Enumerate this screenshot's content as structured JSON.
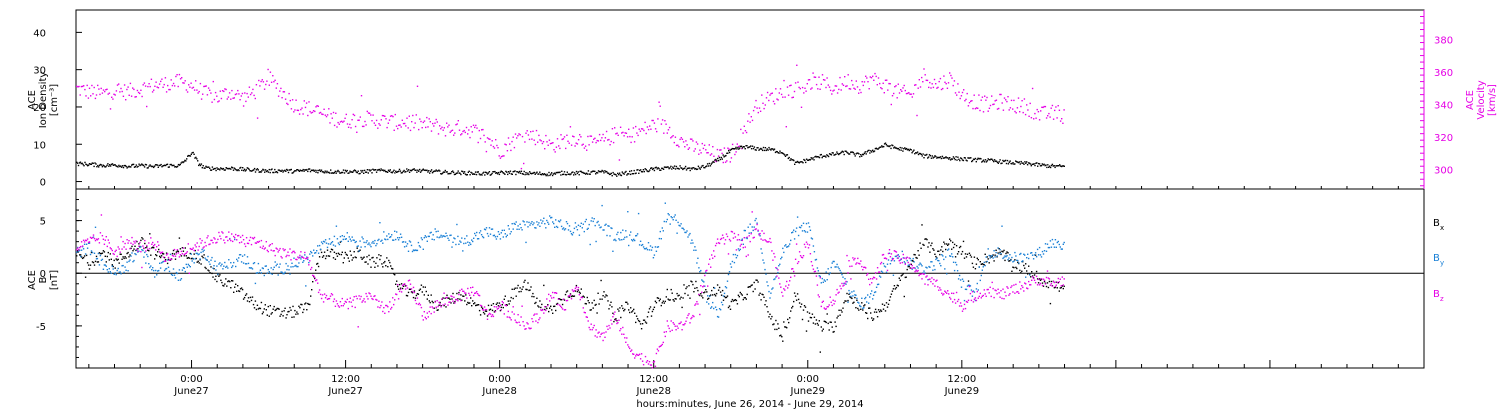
{
  "chart_data": [
    {
      "type": "scatter",
      "panel": "top",
      "title": "",
      "xlabel": "hours:minutes, June 26, 2014 - June 29, 2014",
      "x_unit": "hours since 2014-06-26 00:00 UT",
      "xlim": [
        15,
        120
      ],
      "x_ticks": [
        {
          "label": "0:00",
          "sub": "June27"
        },
        {
          "label": "12:00",
          "sub": "June27"
        },
        {
          "label": "0:00",
          "sub": "June28"
        },
        {
          "label": "12:00",
          "sub": "June28"
        },
        {
          "label": "0:00",
          "sub": "June29"
        },
        {
          "label": "12:00",
          "sub": "June29"
        }
      ],
      "x_tick_values": [
        24,
        36,
        48,
        60,
        72,
        84
      ],
      "left_axis": {
        "label_lines": [
          "ACE",
          "Ion Density",
          "[cm⁻³]"
        ],
        "ylim": [
          -2,
          46
        ],
        "ticks": [
          0,
          10,
          20,
          30,
          40
        ],
        "color": "#000000"
      },
      "right_axis": {
        "label_lines": [
          "ACE",
          "Velocity",
          "[km/s]"
        ],
        "ylim": [
          288,
          398
        ],
        "ticks": [
          300,
          320,
          340,
          360,
          380
        ],
        "color": "#e600e6"
      },
      "series": [
        {
          "key": "density",
          "axis": "left",
          "color": "#000000",
          "x": [
            15,
            16,
            17,
            18,
            19,
            20,
            21,
            22,
            23,
            23.5,
            24,
            24.5,
            25,
            26,
            27,
            28,
            29,
            30,
            31,
            32,
            33,
            34,
            35,
            36,
            37,
            38,
            39,
            40,
            41,
            42,
            43,
            44,
            45,
            46,
            47,
            48,
            49,
            50,
            51,
            52,
            53,
            54,
            55,
            56,
            57,
            58,
            59,
            60,
            61,
            62,
            63,
            64,
            65,
            66,
            67,
            68,
            69,
            70,
            71,
            72,
            73,
            74,
            75,
            76,
            77,
            78,
            79,
            80,
            81,
            82,
            83,
            84,
            85,
            86,
            87,
            88,
            89,
            90,
            91,
            92
          ],
          "y": [
            5,
            4.8,
            4.5,
            4.6,
            4.3,
            4.4,
            4.2,
            4.5,
            4.4,
            6,
            8,
            5,
            3.8,
            3.6,
            3.7,
            3.4,
            3.2,
            3.0,
            3.1,
            2.9,
            3.2,
            3.0,
            2.8,
            2.9,
            2.7,
            3.0,
            3.1,
            2.9,
            3.2,
            3.0,
            2.8,
            2.6,
            2.5,
            2.4,
            2.3,
            2.5,
            2.6,
            2.4,
            2.3,
            2.2,
            2.5,
            2.4,
            2.6,
            2.7,
            2.0,
            2.5,
            3.0,
            3.5,
            3.8,
            3.9,
            3.5,
            4.2,
            6.0,
            8.5,
            9.5,
            9.0,
            8.8,
            8.0,
            5.0,
            6.0,
            7.0,
            7.5,
            8.0,
            7.2,
            8.5,
            10.0,
            9.0,
            8.5,
            7.0,
            6.8,
            6.5,
            6.2,
            6.0,
            5.8,
            5.5,
            5.2,
            5.0,
            4.6,
            4.3,
            4.2
          ],
          "y_repeat_note": ""
        },
        {
          "key": "velocity",
          "axis": "right",
          "color": "#e600e6",
          "x": [
            15,
            16,
            17,
            18,
            19,
            20,
            21,
            22,
            23,
            24,
            25,
            26,
            27,
            28,
            29,
            30,
            31,
            32,
            33,
            34,
            35,
            36,
            37,
            38,
            39,
            40,
            41,
            42,
            43,
            44,
            45,
            46,
            47,
            48,
            49,
            50,
            51,
            52,
            53,
            54,
            55,
            56,
            57,
            58,
            59,
            60,
            61,
            62,
            63,
            64,
            65,
            66,
            67,
            68,
            69,
            70,
            71,
            72,
            73,
            74,
            75,
            76,
            77,
            78,
            79,
            80,
            81,
            82,
            83,
            84,
            85,
            86,
            87,
            88,
            89,
            90,
            91,
            92
          ],
          "y": [
            350,
            348,
            347,
            349,
            348,
            350,
            352,
            353,
            354,
            352,
            347,
            345,
            348,
            344,
            349,
            356,
            348,
            340,
            338,
            335,
            332,
            330,
            332,
            331,
            330,
            329,
            330,
            328,
            327,
            325,
            326,
            324,
            320,
            312,
            318,
            322,
            320,
            315,
            318,
            320,
            316,
            318,
            322,
            321,
            324,
            328,
            326,
            318,
            314,
            312,
            308,
            310,
            325,
            340,
            344,
            348,
            350,
            352,
            354,
            350,
            355,
            352,
            356,
            352,
            348,
            346,
            358,
            352,
            356,
            346,
            342,
            340,
            342,
            340,
            339,
            334,
            335,
            333
          ],
          "y_repeat_note": ""
        }
      ]
    },
    {
      "type": "scatter",
      "panel": "bottom",
      "title": "",
      "xlabel": "hours:minutes, June 26, 2014 - June 29, 2014",
      "xlim": [
        15,
        120
      ],
      "left_axis": {
        "label_lines": [
          "ACE",
          "B",
          "[nT]"
        ],
        "ylim": [
          -9,
          8
        ],
        "ticks": [
          -5,
          0,
          5
        ],
        "color": "#000000"
      },
      "legend": [
        {
          "text": "B",
          "sub": "x",
          "color": "#000000"
        },
        {
          "text": "B",
          "sub": "y",
          "color": "#1a80d6"
        },
        {
          "text": "B",
          "sub": "z",
          "color": "#e600e6"
        }
      ],
      "series": [
        {
          "key": "bx",
          "color": "#000000",
          "x": [
            15,
            16,
            17,
            18,
            19,
            20,
            21,
            22,
            23,
            24,
            25,
            26,
            27,
            28,
            29,
            30,
            31,
            32,
            33,
            34,
            35,
            36,
            37,
            38,
            39,
            40,
            41,
            42,
            43,
            44,
            45,
            46,
            47,
            48,
            49,
            50,
            51,
            52,
            53,
            54,
            55,
            56,
            57,
            58,
            59,
            60,
            61,
            62,
            63,
            64,
            65,
            66,
            67,
            68,
            69,
            70,
            71,
            72,
            73,
            74,
            75,
            76,
            77,
            78,
            79,
            80,
            81,
            82,
            83,
            84,
            85,
            86,
            87,
            88,
            89,
            90,
            91,
            92
          ],
          "y": [
            2,
            1,
            2,
            1,
            2,
            3,
            2,
            1.5,
            2,
            2,
            1,
            -0.5,
            -1,
            -2,
            -3,
            -3.5,
            -3.8,
            -3.6,
            -3.2,
            2,
            1.8,
            1.5,
            2,
            1,
            1.5,
            -1,
            -2,
            -1.5,
            -3,
            -2.5,
            -2,
            -3,
            -3.5,
            -3,
            -2,
            -1,
            -3,
            -3.5,
            -2,
            -1.5,
            -3,
            -2,
            -4,
            -3,
            -5,
            -3,
            -2,
            -2.5,
            -1,
            -2,
            -1.5,
            -3,
            -2,
            -1,
            -4,
            -6,
            -2,
            -4,
            -5,
            -5,
            -2,
            -3,
            -4,
            -3,
            -1,
            1,
            3,
            2,
            3,
            2,
            1,
            1.5,
            2,
            1,
            0.5,
            -0.5,
            -1,
            -1.5
          ]
        },
        {
          "key": "by",
          "color": "#1a80d6",
          "x": [
            15,
            16,
            17,
            18,
            19,
            20,
            21,
            22,
            23,
            24,
            25,
            26,
            27,
            28,
            29,
            30,
            31,
            32,
            33,
            34,
            35,
            36,
            37,
            38,
            39,
            40,
            41,
            42,
            43,
            44,
            45,
            46,
            47,
            48,
            49,
            50,
            51,
            52,
            53,
            54,
            55,
            56,
            57,
            58,
            59,
            60,
            61,
            62,
            63,
            64,
            65,
            66,
            67,
            68,
            69,
            70,
            71,
            72,
            73,
            74,
            75,
            76,
            77,
            78,
            79,
            80,
            81,
            82,
            83,
            84,
            85,
            86,
            87,
            88,
            89,
            90,
            91,
            92
          ],
          "y": [
            2,
            2.5,
            1,
            0,
            1,
            2.5,
            0,
            1,
            -0.5,
            1.5,
            2,
            0.5,
            1,
            1.5,
            0.5,
            0.2,
            0.5,
            1,
            1.5,
            2.5,
            3,
            3.5,
            3,
            3,
            3.5,
            3.8,
            2.5,
            3,
            3.8,
            3.5,
            3,
            3.5,
            4,
            3.5,
            4.5,
            4.5,
            4.8,
            5,
            4.5,
            4,
            5,
            4.5,
            3.5,
            4,
            3,
            2,
            5.5,
            5,
            3,
            -2,
            -4,
            1,
            3.5,
            5,
            -2,
            2,
            4,
            4.5,
            -1,
            1,
            -1,
            -3,
            -2,
            1,
            2,
            1,
            0.5,
            1,
            2,
            -1,
            -2,
            2,
            2,
            1.5,
            1.5,
            2,
            3,
            2.5
          ]
        },
        {
          "key": "bz",
          "color": "#e600e6",
          "x": [
            15,
            16,
            17,
            18,
            19,
            20,
            21,
            22,
            23,
            24,
            25,
            26,
            27,
            28,
            29,
            30,
            31,
            32,
            33,
            34,
            35,
            36,
            37,
            38,
            39,
            40,
            41,
            42,
            43,
            44,
            45,
            46,
            47,
            48,
            49,
            50,
            51,
            52,
            53,
            54,
            55,
            56,
            57,
            58,
            59,
            60,
            61,
            62,
            63,
            64,
            65,
            66,
            67,
            68,
            69,
            70,
            71,
            72,
            73,
            74,
            75,
            76,
            77,
            78,
            79,
            80,
            81,
            82,
            83,
            84,
            85,
            86,
            87,
            88,
            89,
            90,
            91,
            92
          ],
          "y": [
            2.5,
            3,
            3.5,
            2,
            3,
            2.5,
            3,
            1.5,
            2,
            2.5,
            3,
            3.5,
            3.5,
            3.2,
            3,
            2.5,
            2,
            1.8,
            1.5,
            -2,
            -2.5,
            -3,
            -2.5,
            -2,
            -3.5,
            -2,
            -1,
            -4,
            -3,
            -2.5,
            -2,
            -1.5,
            -4,
            -3,
            -4,
            -5,
            -4,
            -2,
            -3,
            -1,
            -5,
            -6,
            -4,
            -7,
            -8,
            -8.5,
            -5,
            -5,
            -4,
            0,
            3,
            3.5,
            3,
            4,
            3,
            -2,
            1,
            3,
            -3,
            -2.5,
            0,
            1.5,
            -1,
            2,
            1.5,
            1,
            -0.5,
            -1,
            -2,
            -3,
            -2,
            -1.5,
            -2,
            -1.5,
            -1,
            -0.5,
            -1,
            -0.5
          ]
        }
      ]
    }
  ]
}
